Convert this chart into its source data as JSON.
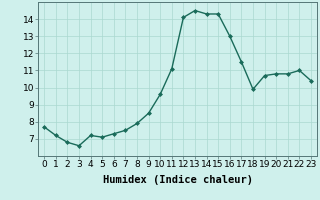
{
  "x": [
    0,
    1,
    2,
    3,
    4,
    5,
    6,
    7,
    8,
    9,
    10,
    11,
    12,
    13,
    14,
    15,
    16,
    17,
    18,
    19,
    20,
    21,
    22,
    23
  ],
  "y": [
    7.7,
    7.2,
    6.8,
    6.6,
    7.2,
    7.1,
    7.3,
    7.5,
    7.9,
    8.5,
    9.6,
    11.1,
    14.1,
    14.5,
    14.3,
    14.3,
    13.0,
    11.5,
    9.9,
    10.7,
    10.8,
    10.8,
    11.0,
    10.4
  ],
  "line_color": "#1a6b5a",
  "marker": "D",
  "marker_size": 2.0,
  "bg_color": "#cff0ec",
  "grid_color": "#aad8d0",
  "xlabel": "Humidex (Indice chaleur)",
  "xlabel_fontsize": 7.5,
  "ylim": [
    6.0,
    15.0
  ],
  "xlim": [
    -0.5,
    23.5
  ],
  "yticks": [
    7,
    8,
    9,
    10,
    11,
    12,
    13,
    14
  ],
  "xticks": [
    0,
    1,
    2,
    3,
    4,
    5,
    6,
    7,
    8,
    9,
    10,
    11,
    12,
    13,
    14,
    15,
    16,
    17,
    18,
    19,
    20,
    21,
    22,
    23
  ],
  "tick_fontsize": 6.5,
  "linewidth": 1.0
}
